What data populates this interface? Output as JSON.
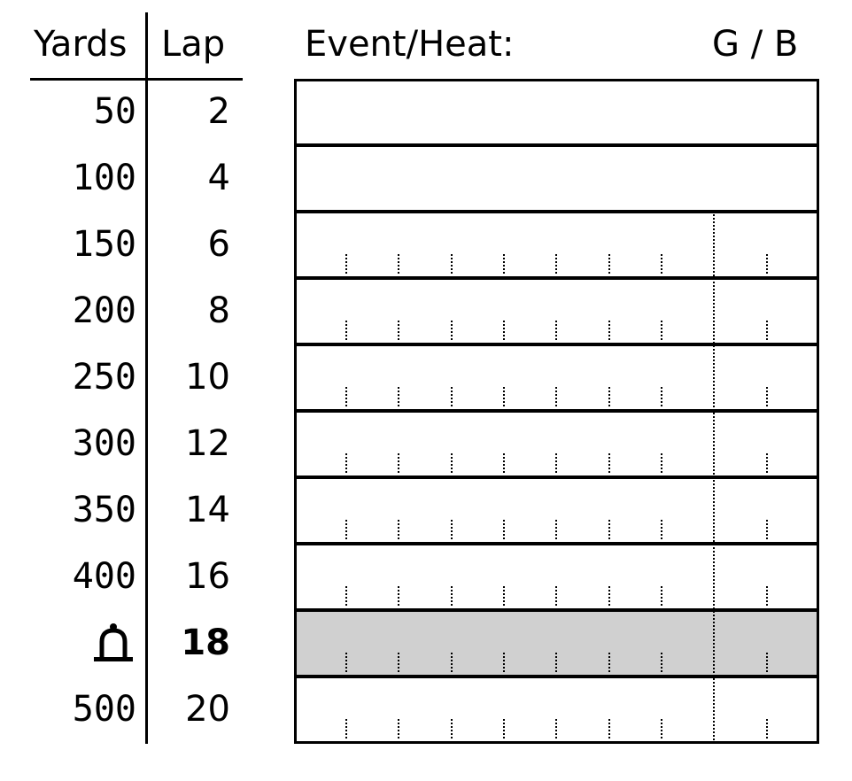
{
  "headers": {
    "yards": "Yards",
    "lap": "Lap",
    "event_heat": "Event/Heat:",
    "gender": "G / B"
  },
  "rows": [
    {
      "yards": "50",
      "lap": "2",
      "bell": false,
      "shaded": false,
      "ticks": false
    },
    {
      "yards": "100",
      "lap": "4",
      "bell": false,
      "shaded": false,
      "ticks": false
    },
    {
      "yards": "150",
      "lap": "6",
      "bell": false,
      "shaded": false,
      "ticks": true
    },
    {
      "yards": "200",
      "lap": "8",
      "bell": false,
      "shaded": false,
      "ticks": true
    },
    {
      "yards": "250",
      "lap": "10",
      "bell": false,
      "shaded": false,
      "ticks": true
    },
    {
      "yards": "300",
      "lap": "12",
      "bell": false,
      "shaded": false,
      "ticks": true
    },
    {
      "yards": "350",
      "lap": "14",
      "bell": false,
      "shaded": false,
      "ticks": true
    },
    {
      "yards": "400",
      "lap": "16",
      "bell": false,
      "shaded": false,
      "ticks": true
    },
    {
      "yards": "",
      "lap": "18",
      "bell": true,
      "shaded": true,
      "ticks": true
    },
    {
      "yards": "500",
      "lap": "20",
      "bell": false,
      "shaded": false,
      "ticks": true
    }
  ],
  "colors": {
    "line": "#000000",
    "shaded": "#d0d0d0",
    "background": "#ffffff"
  },
  "icons": {
    "bell": "bell-icon"
  }
}
